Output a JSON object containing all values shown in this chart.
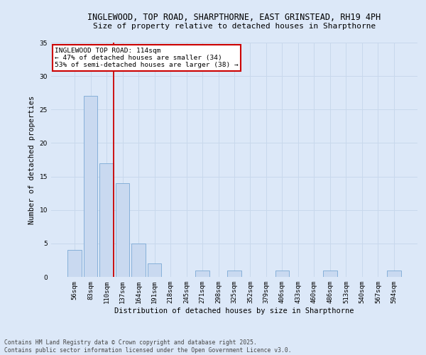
{
  "title1": "INGLEWOOD, TOP ROAD, SHARPTHORNE, EAST GRINSTEAD, RH19 4PH",
  "title2": "Size of property relative to detached houses in Sharpthorne",
  "xlabel": "Distribution of detached houses by size in Sharpthorne",
  "ylabel": "Number of detached properties",
  "categories": [
    "56sqm",
    "83sqm",
    "110sqm",
    "137sqm",
    "164sqm",
    "191sqm",
    "218sqm",
    "245sqm",
    "271sqm",
    "298sqm",
    "325sqm",
    "352sqm",
    "379sqm",
    "406sqm",
    "433sqm",
    "460sqm",
    "486sqm",
    "513sqm",
    "540sqm",
    "567sqm",
    "594sqm"
  ],
  "values": [
    4,
    27,
    17,
    14,
    5,
    2,
    0,
    0,
    1,
    0,
    1,
    0,
    0,
    1,
    0,
    0,
    1,
    0,
    0,
    0,
    1
  ],
  "bar_color": "#c9d9f0",
  "bar_edge_color": "#7aa8d4",
  "vline_x_index": 2,
  "vline_color": "#cc0000",
  "annotation_text": "INGLEWOOD TOP ROAD: 114sqm\n← 47% of detached houses are smaller (34)\n53% of semi-detached houses are larger (38) →",
  "annotation_box_color": "#ffffff",
  "annotation_box_edge": "#cc0000",
  "ylim": [
    0,
    35
  ],
  "yticks": [
    0,
    5,
    10,
    15,
    20,
    25,
    30,
    35
  ],
  "grid_color": "#c8d8ec",
  "background_color": "#dce8f8",
  "footer_text": "Contains HM Land Registry data © Crown copyright and database right 2025.\nContains public sector information licensed under the Open Government Licence v3.0.",
  "title1_fontsize": 8.5,
  "title2_fontsize": 8.0,
  "axis_label_fontsize": 7.5,
  "tick_fontsize": 6.5,
  "annotation_fontsize": 6.8,
  "footer_fontsize": 5.8
}
